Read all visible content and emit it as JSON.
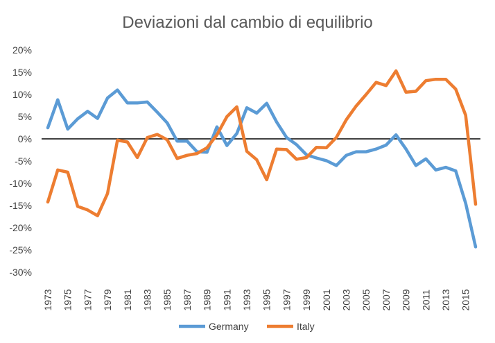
{
  "chart_data": {
    "type": "line",
    "title": "Deviazioni dal cambio di equilibrio",
    "xlabel": "",
    "ylabel": "",
    "x": [
      1973,
      1974,
      1975,
      1976,
      1977,
      1978,
      1979,
      1980,
      1981,
      1982,
      1983,
      1984,
      1985,
      1986,
      1987,
      1988,
      1989,
      1990,
      1991,
      1992,
      1993,
      1994,
      1995,
      1996,
      1997,
      1998,
      1999,
      2000,
      2001,
      2002,
      2003,
      2004,
      2005,
      2006,
      2007,
      2008,
      2009,
      2010,
      2011,
      2012,
      2013,
      2014,
      2015,
      2016
    ],
    "x_tick_labels": [
      "1973",
      "1975",
      "1977",
      "1979",
      "1981",
      "1983",
      "1985",
      "1987",
      "1989",
      "1991",
      "1993",
      "1995",
      "1997",
      "1999",
      "2001",
      "2003",
      "2005",
      "2007",
      "2009",
      "2011",
      "2013",
      "2015"
    ],
    "ylim": [
      -30,
      20
    ],
    "y_tick_labels": [
      "20%",
      "15%",
      "10%",
      "5%",
      "0%",
      "-5%",
      "-10%",
      "-15%",
      "-20%",
      "-25%",
      "-30%"
    ],
    "y_unit": "%",
    "zero_line": true,
    "grid": false,
    "legend": "bottom",
    "series": [
      {
        "name": "Germany",
        "color": "#5B9BD5",
        "values": [
          2.5,
          8.8,
          2.2,
          4.5,
          6.2,
          4.6,
          9.2,
          11.0,
          8.1,
          8.1,
          8.3,
          6.0,
          3.6,
          -0.5,
          -0.5,
          -2.9,
          -3.0,
          2.7,
          -1.5,
          1.2,
          7.0,
          5.8,
          8.0,
          3.8,
          0.3,
          -1.3,
          -3.6,
          -4.3,
          -4.9,
          -6.0,
          -3.7,
          -2.9,
          -2.9,
          -2.3,
          -1.4,
          0.9,
          -2.3,
          -6.0,
          -4.5,
          -7.0,
          -6.4,
          -7.2,
          -14.5,
          -24.3
        ]
      },
      {
        "name": "Italy",
        "color": "#ED7D31",
        "values": [
          -14.2,
          -7.0,
          -7.5,
          -15.2,
          -16.0,
          -17.3,
          -12.3,
          -0.3,
          -0.7,
          -4.2,
          0.3,
          1.0,
          -0.2,
          -4.4,
          -3.7,
          -3.3,
          -2.0,
          0.9,
          5.0,
          7.2,
          -2.8,
          -4.7,
          -9.2,
          -2.3,
          -2.4,
          -4.6,
          -4.2,
          -1.9,
          -2.0,
          0.3,
          4.3,
          7.4,
          10.0,
          12.7,
          12.0,
          15.3,
          10.5,
          10.7,
          13.1,
          13.4,
          13.4,
          11.2,
          5.3,
          -14.7
        ]
      }
    ]
  }
}
